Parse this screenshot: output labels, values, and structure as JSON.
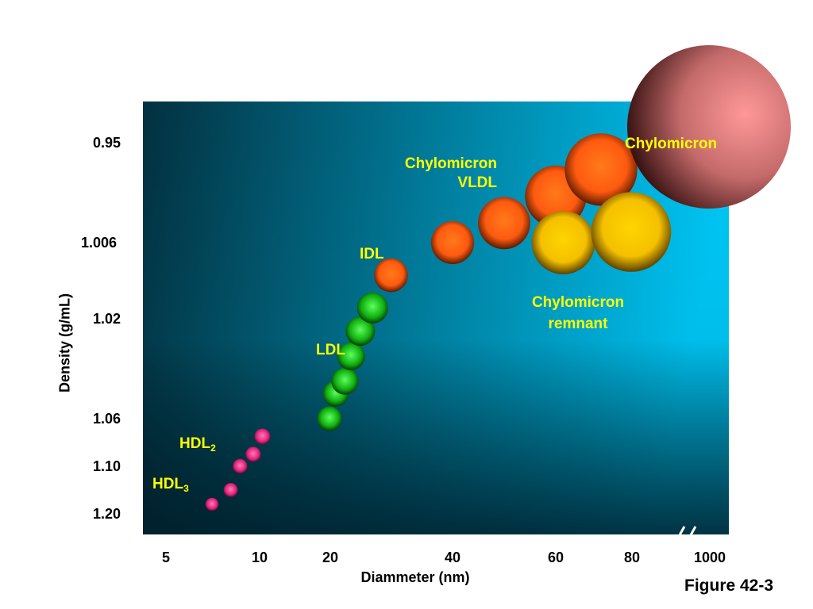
{
  "chart_data": {
    "type": "scatter",
    "title": "",
    "xlabel": "Diammeter (nm)",
    "ylabel": "Density (g/mL)",
    "x_ticks": [
      "5",
      "10",
      "20",
      "40",
      "60",
      "80",
      "1000"
    ],
    "y_ticks": [
      "0.95",
      "1.006",
      "1.02",
      "1.06",
      "1.10",
      "1.20"
    ],
    "colors": {
      "HDL": "#e0207a",
      "LDL": "#12b012",
      "IDL_VLDL": "#ff6010",
      "Chylomicron_remnant": "#f5c000",
      "Chylomicron": "#ff9090",
      "plot_bg_left": "#02303f",
      "plot_bg_right": "#00c8f8",
      "label_text": "#ffff00"
    },
    "series": [
      {
        "name": "HDL3",
        "label": "HDL",
        "label_sub": "3",
        "color_key": "HDL",
        "points": [
          {
            "x": 7.5,
            "y": 1.18
          },
          {
            "x": 8.5,
            "y": 1.15
          }
        ]
      },
      {
        "name": "HDL2",
        "label": "HDL",
        "label_sub": "2",
        "color_key": "HDL",
        "points": [
          {
            "x": 9,
            "y": 1.1
          },
          {
            "x": 9.7,
            "y": 1.09
          },
          {
            "x": 10.5,
            "y": 1.075
          }
        ]
      },
      {
        "name": "LDL",
        "label": "LDL",
        "color_key": "LDL",
        "points": [
          {
            "x": 20,
            "y": 1.06
          },
          {
            "x": 21,
            "y": 1.05
          },
          {
            "x": 22.5,
            "y": 1.045
          },
          {
            "x": 23.5,
            "y": 1.035
          },
          {
            "x": 25,
            "y": 1.025
          },
          {
            "x": 27,
            "y": 1.018
          }
        ]
      },
      {
        "name": "IDL",
        "label": "IDL",
        "color_key": "IDL_VLDL",
        "points": [
          {
            "x": 30,
            "y": 1.012
          }
        ]
      },
      {
        "name": "VLDL",
        "label": "Chylomicron\nVLDL",
        "color_key": "IDL_VLDL",
        "points": [
          {
            "x": 40,
            "y": 1.006
          },
          {
            "x": 50,
            "y": 0.995
          },
          {
            "x": 60,
            "y": 0.98
          },
          {
            "x": 72,
            "y": 0.965
          }
        ]
      },
      {
        "name": "Chylomicron remnant",
        "label": "Chylomicron\nremnant",
        "color_key": "Chylomicron_remnant",
        "points": [
          {
            "x": 62,
            "y": 1.006
          },
          {
            "x": 80,
            "y": 1.0
          }
        ]
      },
      {
        "name": "Chylomicron",
        "label": "Chylomicron",
        "color_key": "Chylomicron",
        "points": [
          {
            "x": 1000,
            "y": 0.93
          }
        ]
      }
    ],
    "x_axis_break": true,
    "grid": false,
    "legend": "none"
  },
  "figure_caption": "Figure 42-3"
}
